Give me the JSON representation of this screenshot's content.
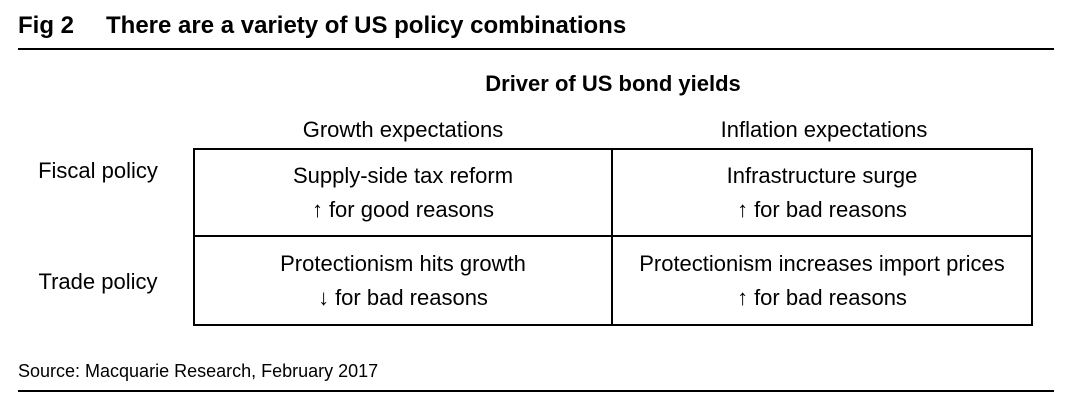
{
  "figure": {
    "label": "Fig 2",
    "title": "There are a variety of US policy combinations"
  },
  "table": {
    "super_header": "Driver of US bond yields",
    "column_headers": [
      "Growth expectations",
      "Inflation expectations"
    ],
    "row_headers": [
      "Fiscal policy",
      "Trade policy"
    ],
    "cells": [
      [
        {
          "main": "Supply-side tax reform",
          "arrow": "↑",
          "note": "for good reasons"
        },
        {
          "main": "Infrastructure surge",
          "arrow": "↑",
          "note": "for bad reasons"
        }
      ],
      [
        {
          "main": "Protectionism hits growth",
          "arrow": "↓",
          "note": "for bad reasons"
        },
        {
          "main": "Protectionism increases import prices",
          "arrow": "↑",
          "note": "for bad reasons"
        }
      ]
    ]
  },
  "source": "Source: Macquarie Research, February 2017"
}
